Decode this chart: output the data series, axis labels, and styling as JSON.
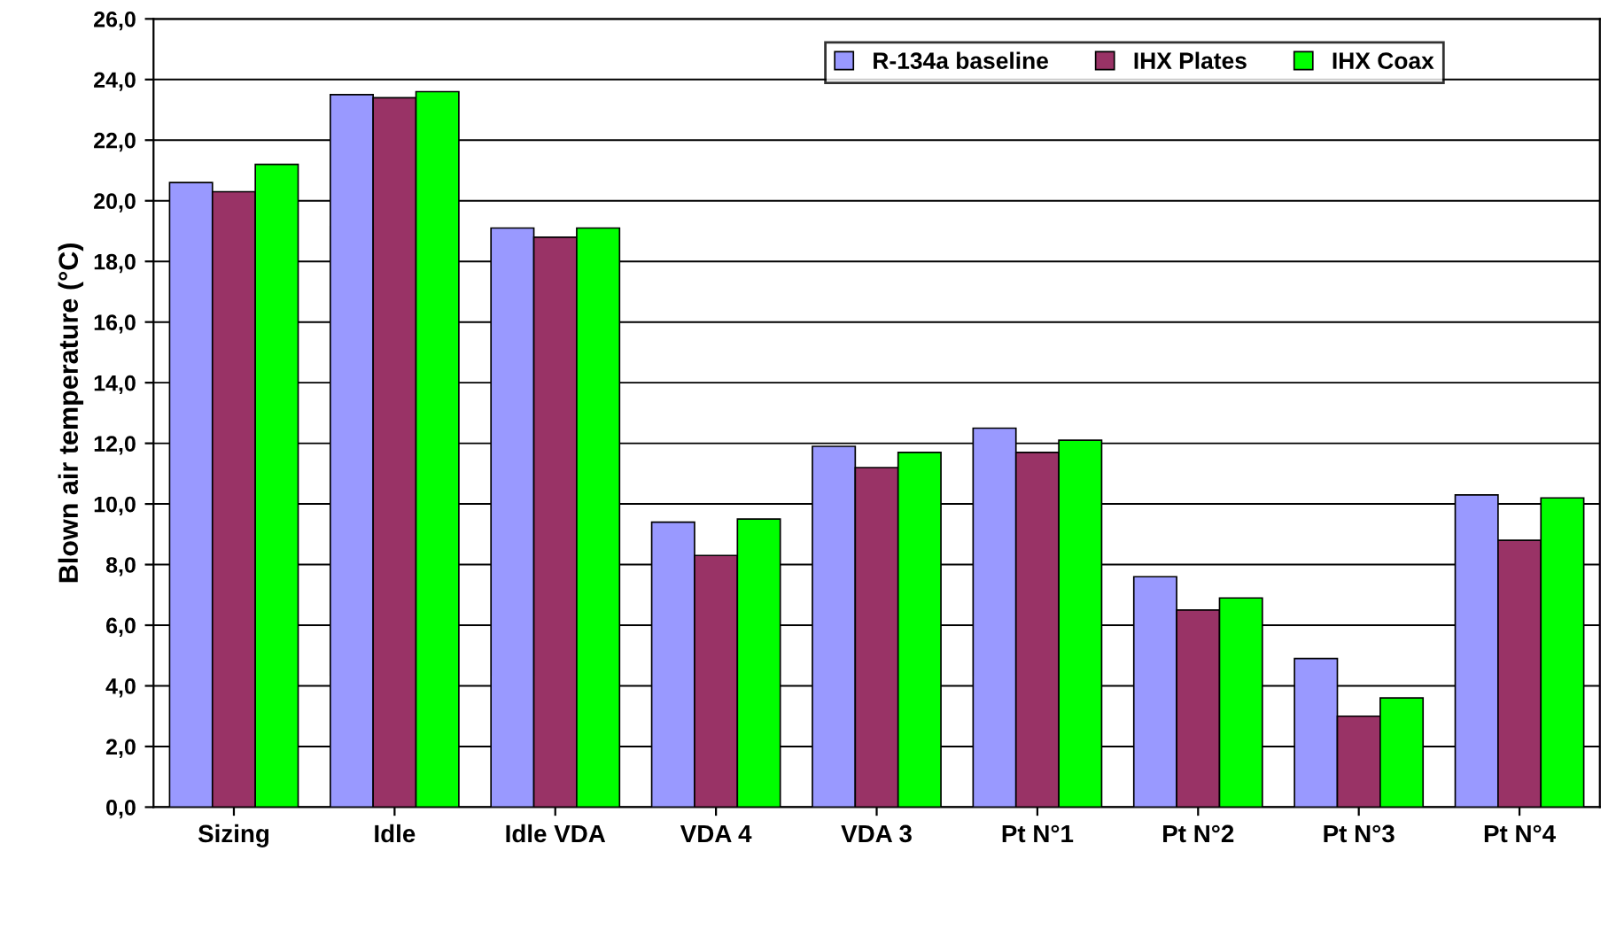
{
  "chart_data": {
    "type": "bar",
    "ylabel": "Blown air temperature (°C)",
    "categories": [
      "Sizing",
      "Idle",
      "Idle VDA",
      "VDA 4",
      "VDA 3",
      "Pt N°1",
      "Pt N°2",
      "Pt N°3",
      "Pt N°4"
    ],
    "series": [
      {
        "name": "R-134a baseline",
        "color": "#9999ff",
        "values": [
          20.6,
          23.5,
          19.1,
          9.4,
          11.9,
          12.5,
          7.6,
          4.9,
          10.3
        ]
      },
      {
        "name": "IHX Plates",
        "color": "#993366",
        "values": [
          20.3,
          23.4,
          18.8,
          8.3,
          11.2,
          11.7,
          6.5,
          3.0,
          8.8
        ]
      },
      {
        "name": "IHX Coax",
        "color": "#00ff00",
        "values": [
          21.2,
          23.6,
          19.1,
          9.5,
          11.7,
          12.1,
          6.9,
          3.6,
          10.2
        ]
      }
    ],
    "ylim": [
      0,
      26
    ],
    "yticks": [
      {
        "value": 0,
        "label": "0,0"
      },
      {
        "value": 2,
        "label": "2,0"
      },
      {
        "value": 4,
        "label": "4,0"
      },
      {
        "value": 6,
        "label": "6,0"
      },
      {
        "value": 8,
        "label": "8,0"
      },
      {
        "value": 10,
        "label": "10,0"
      },
      {
        "value": 12,
        "label": "12,0"
      },
      {
        "value": 14,
        "label": "14,0"
      },
      {
        "value": 16,
        "label": "16,0"
      },
      {
        "value": 18,
        "label": "18,0"
      },
      {
        "value": 20,
        "label": "20,0"
      },
      {
        "value": 22,
        "label": "22,0"
      },
      {
        "value": 24,
        "label": "24,0"
      },
      {
        "value": 26,
        "label": "26,0"
      }
    ],
    "grid": "y",
    "legend": "top right"
  }
}
